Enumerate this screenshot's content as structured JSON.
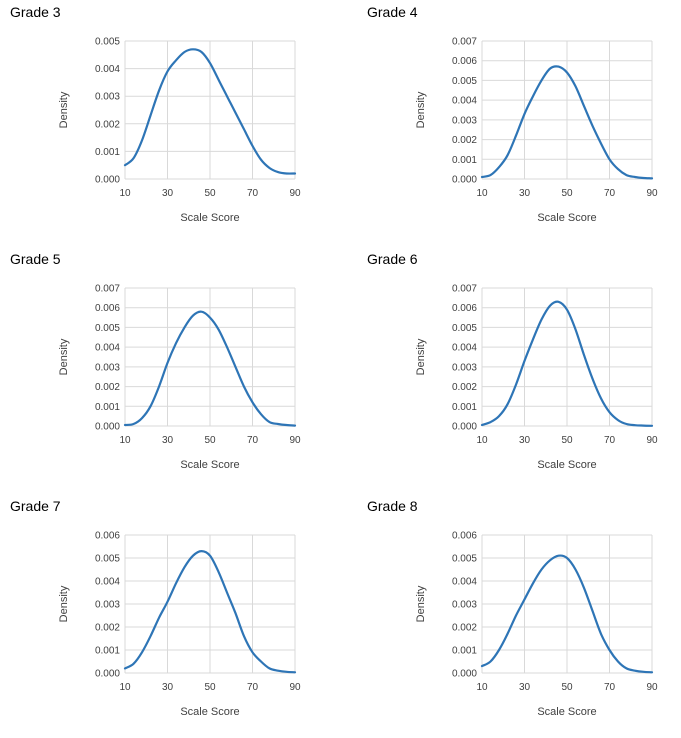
{
  "chart_data": [
    {
      "type": "line",
      "title": "Grade 3",
      "xlabel": "Scale Score",
      "ylabel": "Density",
      "xlim": [
        10,
        90
      ],
      "ylim": [
        0,
        0.005
      ],
      "xticks": [
        "10",
        "30",
        "50",
        "70",
        "90"
      ],
      "yticks": [
        "0.000",
        "0.001",
        "0.002",
        "0.003",
        "0.004",
        "0.005"
      ],
      "grid": true,
      "color": "#2e75b6",
      "x": [
        10,
        14,
        18,
        22,
        26,
        30,
        34,
        38,
        42,
        46,
        50,
        54,
        58,
        62,
        66,
        70,
        74,
        78,
        82,
        86,
        90
      ],
      "y": [
        0.0005,
        0.00075,
        0.0014,
        0.0023,
        0.0032,
        0.0039,
        0.0043,
        0.0046,
        0.0047,
        0.0046,
        0.0042,
        0.0036,
        0.003,
        0.0024,
        0.0018,
        0.0012,
        0.0007,
        0.0004,
        0.00025,
        0.0002,
        0.0002
      ]
    },
    {
      "type": "line",
      "title": "Grade 4",
      "xlabel": "Scale Score",
      "ylabel": "Density",
      "xlim": [
        10,
        90
      ],
      "ylim": [
        0,
        0.007
      ],
      "xticks": [
        "10",
        "30",
        "50",
        "70",
        "90"
      ],
      "yticks": [
        "0.000",
        "0.001",
        "0.002",
        "0.003",
        "0.004",
        "0.005",
        "0.006",
        "0.007"
      ],
      "grid": true,
      "color": "#2e75b6",
      "x": [
        10,
        14,
        18,
        22,
        26,
        30,
        34,
        38,
        42,
        46,
        50,
        54,
        58,
        62,
        66,
        70,
        74,
        78,
        82,
        86,
        90
      ],
      "y": [
        0.0001,
        0.0002,
        0.0006,
        0.0012,
        0.0022,
        0.0033,
        0.0042,
        0.005,
        0.0056,
        0.0057,
        0.0054,
        0.0047,
        0.0037,
        0.0027,
        0.0018,
        0.001,
        0.0005,
        0.0002,
        0.0001,
        5e-05,
        3e-05
      ]
    },
    {
      "type": "line",
      "title": "Grade 5",
      "xlabel": "Scale Score",
      "ylabel": "Density",
      "xlim": [
        10,
        90
      ],
      "ylim": [
        0,
        0.007
      ],
      "xticks": [
        "10",
        "30",
        "50",
        "70",
        "90"
      ],
      "yticks": [
        "0.000",
        "0.001",
        "0.002",
        "0.003",
        "0.004",
        "0.005",
        "0.006",
        "0.007"
      ],
      "grid": true,
      "color": "#2e75b6",
      "x": [
        10,
        14,
        18,
        22,
        26,
        30,
        34,
        38,
        42,
        46,
        50,
        54,
        58,
        62,
        66,
        70,
        74,
        78,
        82,
        86,
        90
      ],
      "y": [
        5e-05,
        0.0001,
        0.0004,
        0.001,
        0.002,
        0.0032,
        0.0042,
        0.005,
        0.0056,
        0.0058,
        0.0055,
        0.0049,
        0.004,
        0.003,
        0.002,
        0.0012,
        0.0006,
        0.0002,
        0.0001,
        5e-05,
        2e-05
      ]
    },
    {
      "type": "line",
      "title": "Grade 6",
      "xlabel": "Scale Score",
      "ylabel": "Density",
      "xlim": [
        10,
        90
      ],
      "ylim": [
        0,
        0.007
      ],
      "xticks": [
        "10",
        "30",
        "50",
        "70",
        "90"
      ],
      "yticks": [
        "0.000",
        "0.001",
        "0.002",
        "0.003",
        "0.004",
        "0.005",
        "0.006",
        "0.007"
      ],
      "grid": true,
      "color": "#2e75b6",
      "x": [
        10,
        14,
        18,
        22,
        26,
        30,
        34,
        38,
        42,
        46,
        50,
        54,
        58,
        62,
        66,
        70,
        74,
        78,
        82,
        86,
        90
      ],
      "y": [
        5e-05,
        0.0002,
        0.0005,
        0.0011,
        0.0021,
        0.0033,
        0.0044,
        0.0054,
        0.0061,
        0.0063,
        0.0059,
        0.0049,
        0.0036,
        0.0024,
        0.0014,
        0.0007,
        0.0003,
        0.0001,
        4e-05,
        2e-05,
        1e-05
      ]
    },
    {
      "type": "line",
      "title": "Grade 7",
      "xlabel": "Scale Score",
      "ylabel": "Density",
      "xlim": [
        10,
        90
      ],
      "ylim": [
        0,
        0.006
      ],
      "xticks": [
        "10",
        "30",
        "50",
        "70",
        "90"
      ],
      "yticks": [
        "0.000",
        "0.001",
        "0.002",
        "0.003",
        "0.004",
        "0.005",
        "0.006"
      ],
      "grid": true,
      "color": "#2e75b6",
      "x": [
        10,
        14,
        18,
        22,
        26,
        30,
        34,
        38,
        42,
        46,
        50,
        54,
        58,
        62,
        66,
        70,
        74,
        78,
        82,
        86,
        90
      ],
      "y": [
        0.0002,
        0.0004,
        0.0009,
        0.0016,
        0.0024,
        0.0031,
        0.0039,
        0.0046,
        0.0051,
        0.0053,
        0.0051,
        0.0044,
        0.0035,
        0.0026,
        0.0016,
        0.0009,
        0.0005,
        0.0002,
        0.0001,
        5e-05,
        3e-05
      ]
    },
    {
      "type": "line",
      "title": "Grade 8",
      "xlabel": "Scale Score",
      "ylabel": "Density",
      "xlim": [
        10,
        90
      ],
      "ylim": [
        0,
        0.006
      ],
      "xticks": [
        "10",
        "30",
        "50",
        "70",
        "90"
      ],
      "yticks": [
        "0.000",
        "0.001",
        "0.002",
        "0.003",
        "0.004",
        "0.005",
        "0.006"
      ],
      "grid": true,
      "color": "#2e75b6",
      "x": [
        10,
        14,
        18,
        22,
        26,
        30,
        34,
        38,
        42,
        46,
        50,
        54,
        58,
        62,
        66,
        70,
        74,
        78,
        82,
        86,
        90
      ],
      "y": [
        0.0003,
        0.0005,
        0.001,
        0.0017,
        0.0025,
        0.0032,
        0.0039,
        0.0045,
        0.0049,
        0.0051,
        0.005,
        0.0045,
        0.0037,
        0.0027,
        0.0017,
        0.001,
        0.0005,
        0.0002,
        0.0001,
        5e-05,
        3e-05
      ]
    }
  ]
}
